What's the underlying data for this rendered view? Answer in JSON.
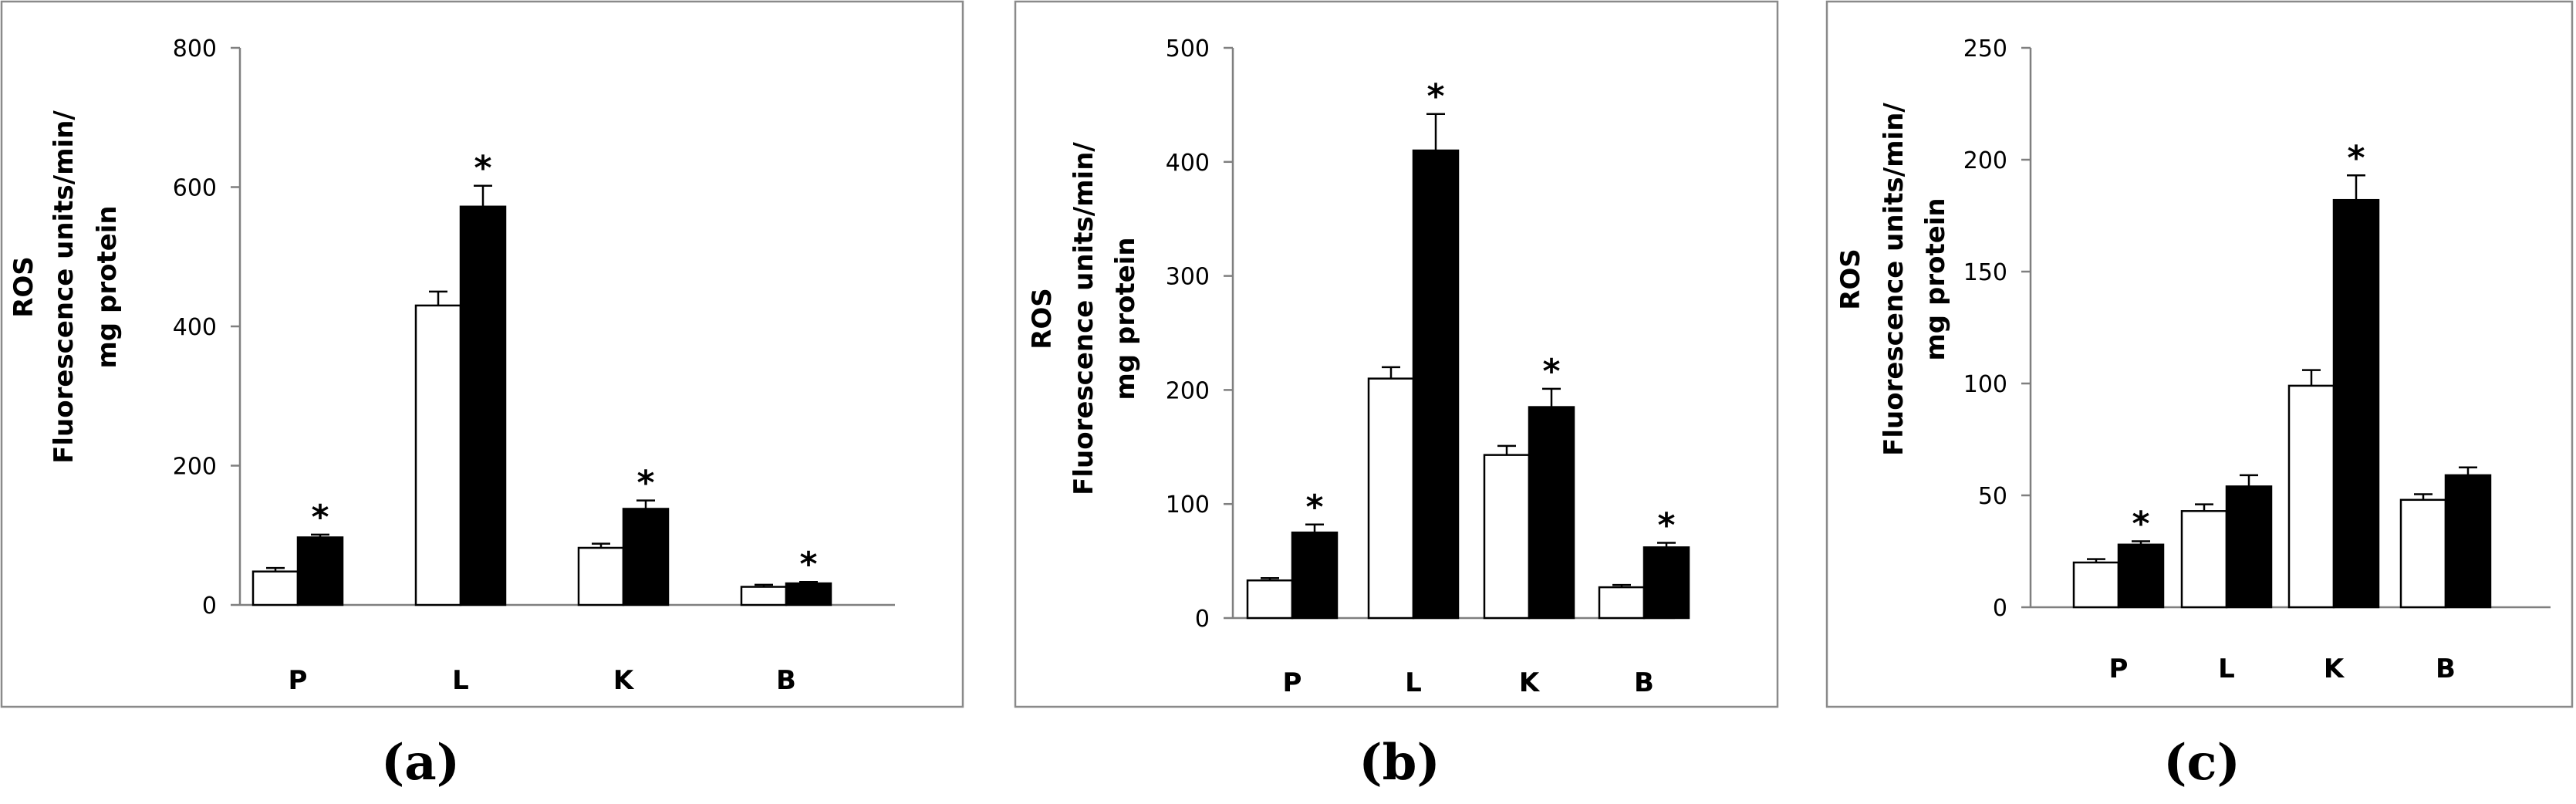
{
  "chart_data": [
    {
      "type": "bar",
      "panel_label": "(a)",
      "ylabel": [
        "ROS",
        "Fluorescence units/min/",
        "mg protein"
      ],
      "ylim": [
        0,
        800
      ],
      "yticks": [
        0,
        200,
        400,
        600,
        800
      ],
      "categories": [
        "P",
        "L",
        "K",
        "B"
      ],
      "series": [
        {
          "fill": "#ffffff",
          "values": [
            48,
            430,
            82,
            26
          ],
          "errors": [
            5,
            20,
            6,
            3
          ]
        },
        {
          "fill": "#000000",
          "values": [
            97,
            572,
            138,
            31
          ],
          "errors": [
            4,
            30,
            12,
            2
          ]
        }
      ],
      "significant": [
        true,
        true,
        true,
        true
      ]
    },
    {
      "type": "bar",
      "panel_label": "(b)",
      "ylabel": [
        "ROS",
        "Fluorescence units/min/",
        "mg protein"
      ],
      "ylim": [
        0,
        500
      ],
      "yticks": [
        0,
        100,
        200,
        300,
        400,
        500
      ],
      "categories": [
        "P",
        "L",
        "K",
        "B"
      ],
      "series": [
        {
          "fill": "#ffffff",
          "values": [
            33,
            210,
            143,
            27
          ],
          "errors": [
            2,
            10,
            8,
            2
          ]
        },
        {
          "fill": "#000000",
          "values": [
            75,
            410,
            185,
            62
          ],
          "errors": [
            7,
            32,
            16,
            4
          ]
        }
      ],
      "significant": [
        true,
        true,
        true,
        true
      ]
    },
    {
      "type": "bar",
      "panel_label": "(c)",
      "ylabel": [
        "ROS",
        "Fluorescence units/min/",
        "mg protein"
      ],
      "ylim": [
        0,
        250
      ],
      "yticks": [
        0,
        50,
        100,
        150,
        200,
        250
      ],
      "categories": [
        "P",
        "L",
        "K",
        "B"
      ],
      "series": [
        {
          "fill": "#ffffff",
          "values": [
            20,
            43,
            99,
            48
          ],
          "errors": [
            1.5,
            3,
            7,
            2.5
          ]
        },
        {
          "fill": "#000000",
          "values": [
            28,
            54,
            182,
            59
          ],
          "errors": [
            1.5,
            5,
            11,
            3.5
          ]
        }
      ],
      "significant": [
        true,
        false,
        true,
        false
      ]
    }
  ],
  "star_symbol": "*"
}
